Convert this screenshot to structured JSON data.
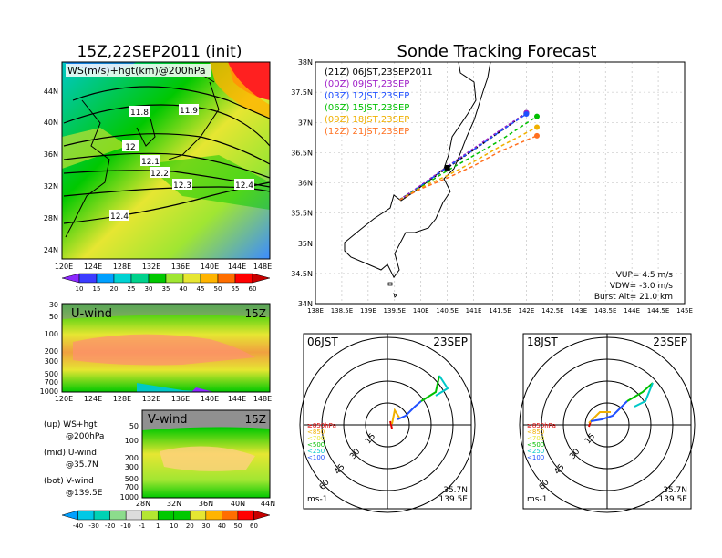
{
  "titles": {
    "left": "15Z,22SEP2011 (init)",
    "right": "Sonde Tracking Forecast"
  },
  "map_panel": {
    "label": "WS(m/s)+hgt(km)@200hPa",
    "y_ticks": [
      "44N",
      "40N",
      "36N",
      "32N",
      "28N",
      "24N"
    ],
    "x_ticks": [
      "120E",
      "124E",
      "128E",
      "132E",
      "136E",
      "140E",
      "144E",
      "148E"
    ],
    "contour_labels": [
      "11.8",
      "11.9",
      "12",
      "12.1",
      "12.2",
      "12.3",
      "12.4",
      "12.4"
    ]
  },
  "colorbar_top": {
    "labels": [
      "10",
      "15",
      "20",
      "25",
      "30",
      "35",
      "40",
      "45",
      "50",
      "55",
      "60"
    ],
    "colors": [
      "#8c28ff",
      "#3c3cff",
      "#00a0ff",
      "#00d2d2",
      "#00d28c",
      "#00c800",
      "#a0e632",
      "#e6e632",
      "#ffb400",
      "#ff6e00",
      "#ff0000",
      "#c80000"
    ]
  },
  "u_panel": {
    "label": "U-wind",
    "time": "15Z",
    "y_ticks": [
      "30",
      "50",
      "100",
      "200",
      "300",
      "500",
      "700",
      "1000"
    ],
    "x_ticks": [
      "120E",
      "124E",
      "128E",
      "132E",
      "136E",
      "140E",
      "144E",
      "148E"
    ]
  },
  "v_panel": {
    "label": "V-wind",
    "time": "15Z",
    "y_ticks": [
      "50",
      "100",
      "200",
      "300",
      "500",
      "700",
      "1000"
    ],
    "x_ticks": [
      "28N",
      "32N",
      "36N",
      "40N",
      "44N"
    ]
  },
  "colorbar_bottom": {
    "labels": [
      "-40",
      "-30",
      "-20",
      "-10",
      "-1",
      "1",
      "10",
      "20",
      "30",
      "40",
      "50",
      "60"
    ],
    "colors": [
      "#00a0ff",
      "#00c8e6",
      "#00d2b4",
      "#8cdc8c",
      "#dcdcdc",
      "#b4e632",
      "#00c800",
      "#00c800",
      "#e6e632",
      "#ffb400",
      "#ff6e00",
      "#ff0000",
      "#c80000"
    ]
  },
  "legend_notes": [
    {
      "a": "(up) WS+hgt",
      "b": "@200hPa"
    },
    {
      "a": "(mid) U-wind",
      "b": "@35.7N"
    },
    {
      "a": "(bot) V-wind",
      "b": "@139.5E"
    }
  ],
  "track_panel": {
    "y_ticks": [
      "38N",
      "37.5N",
      "37N",
      "36.5N",
      "36N",
      "35.5N",
      "35N",
      "34.5N",
      "34N"
    ],
    "x_ticks": [
      "138E",
      "138.5E",
      "139E",
      "139.5E",
      "140E",
      "140.5E",
      "141E",
      "141.5E",
      "142E",
      "142.5E",
      "143E",
      "143.5E",
      "144E",
      "144.5E",
      "145E"
    ],
    "legend": [
      {
        "label": "(21Z)  06JST,23SEP2011",
        "color": "#000000"
      },
      {
        "label": "(00Z)  09JST,23SEP",
        "color": "#a020c8"
      },
      {
        "label": "(03Z)  12JST,23SEP",
        "color": "#2050ff"
      },
      {
        "label": "(06Z)  15JST,23SEP",
        "color": "#00c000"
      },
      {
        "label": "(09Z)  18JST,23SEP",
        "color": "#f0b000"
      },
      {
        "label": "(12Z)  21JST,23SEP",
        "color": "#ff7020"
      }
    ],
    "params": {
      "vup": "VUP=  4.5 m/s",
      "vdw": "VDW= -3.0 m/s",
      "burst": "Burst Alt= 21.0 km"
    }
  },
  "chart_data": {
    "type": "line",
    "xlabel": "",
    "ylabel": "",
    "xlim": [
      138,
      145
    ],
    "ylim": [
      34,
      38
    ],
    "series": [
      {
        "name": "(21Z)  06JST,23SEP2011",
        "color": "#000000",
        "x": [
          139.6,
          140.0,
          140.5,
          141.0,
          141.5,
          142.0
        ],
        "y": [
          35.72,
          35.95,
          36.25,
          36.55,
          36.85,
          37.16
        ]
      },
      {
        "name": "(00Z)  09JST,23SEP",
        "color": "#a020c8",
        "x": [
          139.6,
          140.0,
          140.5,
          141.0,
          141.5,
          142.0
        ],
        "y": [
          35.72,
          35.96,
          36.27,
          36.57,
          36.87,
          37.16
        ]
      },
      {
        "name": "(03Z)  12JST,23SEP",
        "color": "#2050ff",
        "x": [
          139.6,
          140.0,
          140.5,
          141.0,
          141.5,
          142.0
        ],
        "y": [
          35.72,
          35.95,
          36.26,
          36.55,
          36.85,
          37.14
        ]
      },
      {
        "name": "(06Z)  15JST,23SEP",
        "color": "#00c000",
        "x": [
          139.6,
          140.0,
          140.5,
          141.0,
          141.5,
          142.2
        ],
        "y": [
          35.72,
          35.93,
          36.2,
          36.45,
          36.7,
          37.1
        ]
      },
      {
        "name": "(09Z)  18JST,23SEP",
        "color": "#f0b000",
        "x": [
          139.6,
          140.0,
          140.5,
          141.0,
          141.5,
          142.2
        ],
        "y": [
          35.72,
          35.92,
          36.12,
          36.35,
          36.6,
          36.92
        ]
      },
      {
        "name": "(12Z)  21JST,23SEP",
        "color": "#ff7020",
        "x": [
          139.6,
          140.0,
          140.5,
          141.0,
          141.5,
          142.2
        ],
        "y": [
          35.72,
          35.9,
          36.08,
          36.28,
          36.52,
          36.78
        ]
      }
    ]
  },
  "polar_left": {
    "time": "06JST",
    "date": "23SEP",
    "ring_labels": [
      "15",
      "30",
      "45",
      "60"
    ],
    "levels": [
      {
        "label": "≥850hPa",
        "color": "#e00000"
      },
      {
        "label": "<850",
        "color": "#f0b000"
      },
      {
        "label": "<700",
        "color": "#e6e632"
      },
      {
        "label": "<500",
        "color": "#00c000"
      },
      {
        "label": "<250",
        "color": "#00c8c8"
      },
      {
        "label": "<100",
        "color": "#2050ff"
      }
    ],
    "unit": "ms-1",
    "lat": "35.7N",
    "lon": "139.5E"
  },
  "polar_right": {
    "time": "18JST",
    "date": "23SEP",
    "ring_labels": [
      "15",
      "30",
      "45",
      "60"
    ],
    "levels": [
      {
        "label": "≥850hPa",
        "color": "#e00000"
      },
      {
        "label": "<850",
        "color": "#f0b000"
      },
      {
        "label": "<700",
        "color": "#e6e632"
      },
      {
        "label": "<500",
        "color": "#00c000"
      },
      {
        "label": "<250",
        "color": "#00c8c8"
      },
      {
        "label": "<100",
        "color": "#2050ff"
      }
    ],
    "unit": "ms-1",
    "lat": "35.7N",
    "lon": "139.5E"
  }
}
